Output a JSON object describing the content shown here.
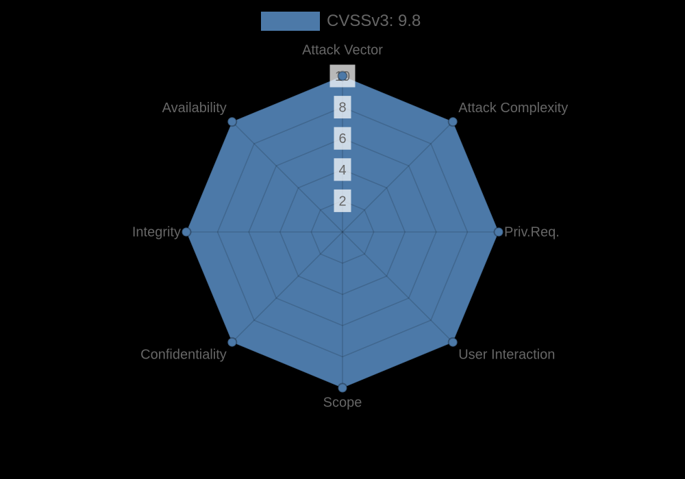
{
  "background": "#000000",
  "legend": {
    "position": "top",
    "items": [
      {
        "label": "CVSSv3: 9.8",
        "swatch_color": "#4c79a8"
      }
    ]
  },
  "chart_data": {
    "type": "radar",
    "categories": [
      "Attack Vector",
      "Attack Complexity",
      "Priv.Req.",
      "User Interaction",
      "Scope",
      "Confidentiality",
      "Integrity",
      "Availability"
    ],
    "series": [
      {
        "name": "CVSSv3: 9.8",
        "values": [
          10,
          10,
          10,
          10,
          10,
          10,
          10,
          10
        ],
        "fill_color": "#4c79a8",
        "point_fill_color": "#4c79a8",
        "point_border_color": "rgba(0,0,0,0.3)"
      }
    ],
    "rmin": 0,
    "rmax": 10,
    "ticks": [
      2,
      4,
      6,
      8,
      10
    ],
    "grid": true,
    "grid_shape": "polygon",
    "grid_color": "rgba(0,0,0,0.15)",
    "axis_label_color": "#666666",
    "tick_label_color": "#666666",
    "tick_backdrop_color": "rgba(255,255,255,0.72)",
    "legend_position": "top"
  }
}
